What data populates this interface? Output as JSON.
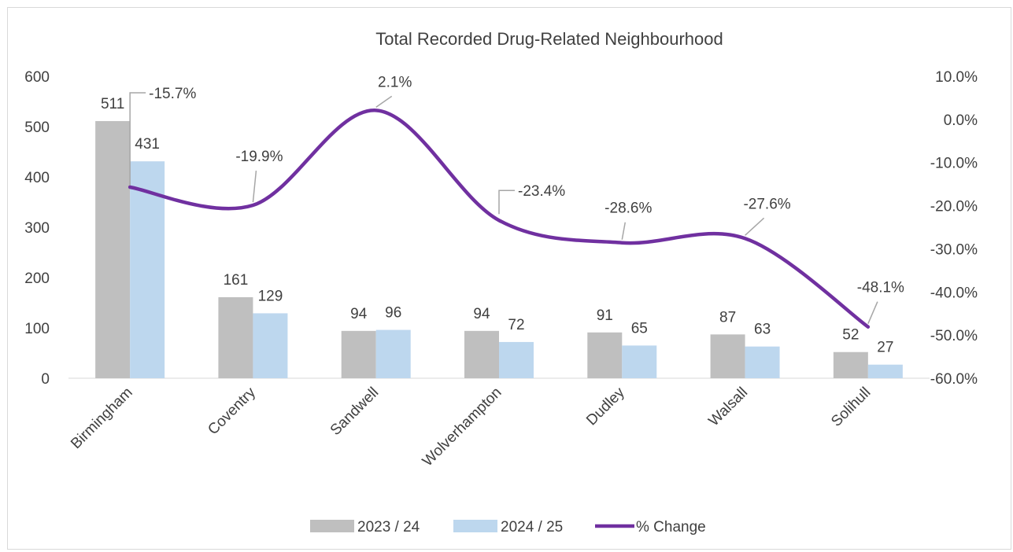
{
  "chart_data": {
    "type": "bar",
    "title": "Total Recorded Drug-Related Neighbourhood",
    "categories": [
      "Birmingham",
      "Coventry",
      "Sandwell",
      "Wolverhampton",
      "Dudley",
      "Walsall",
      "Solihull"
    ],
    "series": [
      {
        "name": "2023 / 24",
        "type": "bar",
        "axis": "left",
        "color": "#bfbfbf",
        "values": [
          511,
          161,
          94,
          94,
          91,
          87,
          52
        ],
        "labels": [
          "511",
          "161",
          "94",
          "94",
          "91",
          "87",
          "52"
        ]
      },
      {
        "name": "2024 / 25",
        "type": "bar",
        "axis": "left",
        "color": "#bdd7ee",
        "values": [
          431,
          129,
          96,
          72,
          65,
          63,
          27
        ],
        "labels": [
          "431",
          "129",
          "96",
          "72",
          "65",
          "63",
          "27"
        ]
      },
      {
        "name": "% Change",
        "type": "line",
        "axis": "right",
        "color": "#7030a0",
        "values": [
          -15.7,
          -19.9,
          2.1,
          -23.4,
          -28.6,
          -27.6,
          -48.1
        ],
        "labels": [
          "-15.7%",
          "-19.9%",
          "2.1%",
          "-23.4%",
          "-28.6%",
          "-27.6%",
          "-48.1%"
        ]
      }
    ],
    "y_left": {
      "min": 0,
      "max": 600,
      "ticks": [
        "0",
        "100",
        "200",
        "300",
        "400",
        "500",
        "600"
      ]
    },
    "y_right": {
      "min": -60,
      "max": 10,
      "ticks": [
        "-60.0%",
        "-50.0%",
        "-40.0%",
        "-30.0%",
        "-20.0%",
        "-10.0%",
        "0.0%",
        "10.0%"
      ]
    },
    "grid": false,
    "legend_position": "bottom"
  }
}
